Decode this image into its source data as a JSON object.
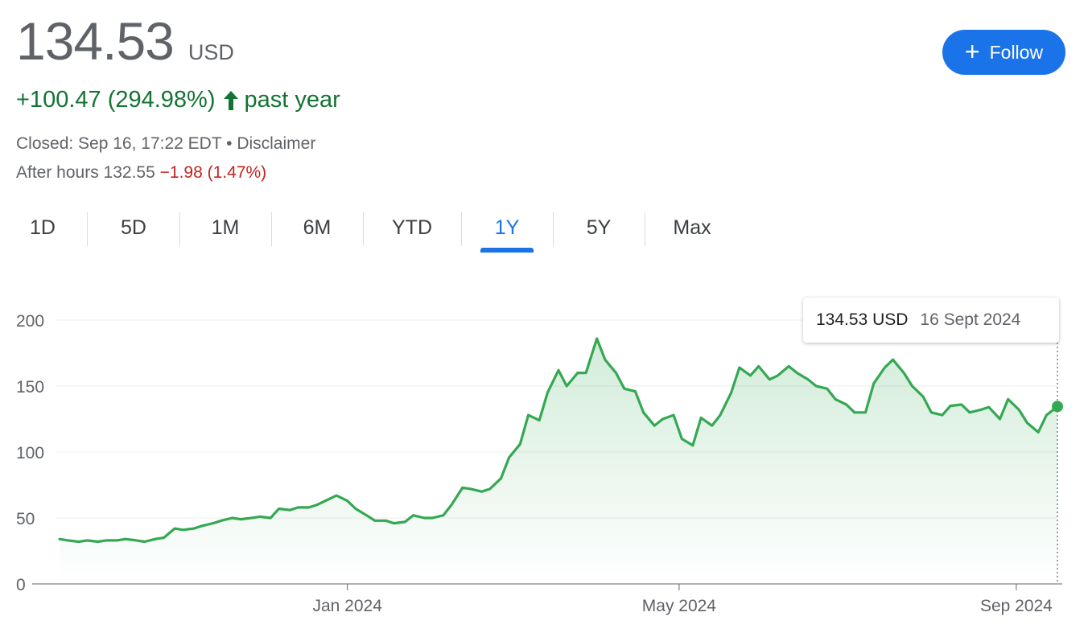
{
  "quote": {
    "price": "134.53",
    "currency": "USD",
    "change": "+100.47 (294.98%)",
    "period": "past year",
    "closed_text": "Closed: Sep 16, 17:22 EDT",
    "separator": " • ",
    "disclaimer": "Disclaimer",
    "after_hours_label": "After hours 132.55",
    "after_hours_change": "−1.98 (1.47%)"
  },
  "follow_button": {
    "label": "Follow"
  },
  "tabs": [
    "1D",
    "5D",
    "1M",
    "6M",
    "YTD",
    "1Y",
    "5Y",
    "Max"
  ],
  "active_tab": "1Y",
  "tooltip": {
    "price": "134.53 USD",
    "date": "16 Sept 2024"
  },
  "colors": {
    "line": "#34a853",
    "positive": "#137333",
    "negative": "#c5221f",
    "accent": "#1a73e8"
  },
  "chart_data": {
    "type": "area",
    "x_ticks": [
      "Jan 2024",
      "May 2024",
      "Sep 2024"
    ],
    "y_ticks": [
      0,
      50,
      100,
      150,
      200
    ],
    "ylim": [
      0,
      200
    ],
    "grid": true,
    "x": [
      "2023-09-18",
      "2023-09-21",
      "2023-09-25",
      "2023-09-28",
      "2023-10-02",
      "2023-10-05",
      "2023-10-09",
      "2023-10-12",
      "2023-10-16",
      "2023-10-19",
      "2023-10-23",
      "2023-10-26",
      "2023-10-30",
      "2023-11-02",
      "2023-11-06",
      "2023-11-09",
      "2023-11-13",
      "2023-11-16",
      "2023-11-20",
      "2023-11-23",
      "2023-11-27",
      "2023-11-30",
      "2023-12-04",
      "2023-12-07",
      "2023-12-11",
      "2023-12-14",
      "2023-12-18",
      "2023-12-21",
      "2023-12-25",
      "2023-12-28",
      "2024-01-01",
      "2024-01-04",
      "2024-01-08",
      "2024-01-11",
      "2024-01-15",
      "2024-01-18",
      "2024-01-22",
      "2024-01-25",
      "2024-01-29",
      "2024-02-01",
      "2024-02-05",
      "2024-02-08",
      "2024-02-12",
      "2024-02-15",
      "2024-02-19",
      "2024-02-22",
      "2024-02-26",
      "2024-02-29",
      "2024-03-04",
      "2024-03-07",
      "2024-03-11",
      "2024-03-14",
      "2024-03-18",
      "2024-03-21",
      "2024-03-25",
      "2024-03-28",
      "2024-04-01",
      "2024-04-04",
      "2024-04-08",
      "2024-04-11",
      "2024-04-15",
      "2024-04-18",
      "2024-04-22",
      "2024-04-25",
      "2024-04-29",
      "2024-05-02",
      "2024-05-06",
      "2024-05-09",
      "2024-05-13",
      "2024-05-16",
      "2024-05-20",
      "2024-05-23",
      "2024-05-27",
      "2024-05-30",
      "2024-06-03",
      "2024-06-06",
      "2024-06-10",
      "2024-06-13",
      "2024-06-17",
      "2024-06-20",
      "2024-06-24",
      "2024-06-27",
      "2024-07-01",
      "2024-07-04",
      "2024-07-08",
      "2024-07-11",
      "2024-07-15",
      "2024-07-18",
      "2024-07-22",
      "2024-07-25",
      "2024-07-29",
      "2024-08-01",
      "2024-08-05",
      "2024-08-08",
      "2024-08-12",
      "2024-08-15",
      "2024-08-19",
      "2024-08-22",
      "2024-08-26",
      "2024-08-29",
      "2024-09-02",
      "2024-09-05",
      "2024-09-09",
      "2024-09-12",
      "2024-09-16"
    ],
    "values": [
      34,
      33,
      32,
      33,
      32,
      33,
      33,
      34,
      33,
      32,
      34,
      35,
      42,
      41,
      42,
      44,
      46,
      48,
      50,
      49,
      50,
      51,
      50,
      57,
      56,
      58,
      58,
      60,
      64,
      67,
      63,
      57,
      52,
      48,
      48,
      46,
      47,
      52,
      50,
      50,
      52,
      60,
      73,
      72,
      70,
      72,
      80,
      96,
      106,
      128,
      124,
      145,
      162,
      150,
      160,
      160,
      186,
      170,
      160,
      148,
      146,
      130,
      120,
      125,
      128,
      110,
      105,
      126,
      120,
      128,
      145,
      164,
      158,
      165,
      155,
      158,
      165,
      160,
      155,
      150,
      148,
      140,
      136,
      130,
      130,
      152,
      164,
      170,
      160,
      150,
      142,
      130,
      128,
      135,
      136,
      130,
      132,
      134,
      125,
      140,
      132,
      122,
      115,
      128,
      134.53
    ]
  }
}
